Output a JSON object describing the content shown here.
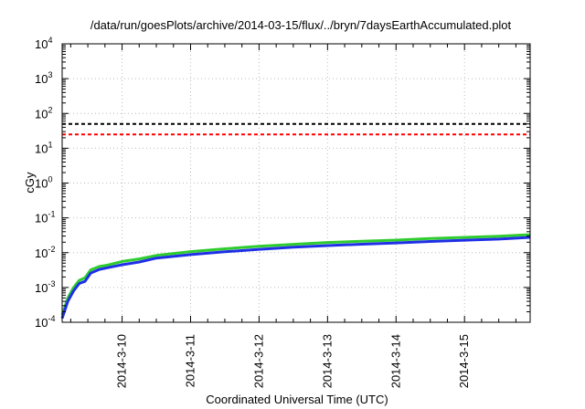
{
  "chart_data": {
    "type": "line",
    "title": "/data/run/goesPlots/archive/2014-03-15/flux/../bryn/7daysEarthAccumulated.plot",
    "xlabel": "Coordinated Universal Time (UTC)",
    "ylabel": "cGy",
    "y_scale": "log",
    "ylim": [
      0.0001,
      10000
    ],
    "y_ticks": [
      {
        "value": 0.0001,
        "base": "10",
        "exp": "-4"
      },
      {
        "value": 0.001,
        "base": "10",
        "exp": "-3"
      },
      {
        "value": 0.01,
        "base": "10",
        "exp": "-2"
      },
      {
        "value": 0.1,
        "base": "10",
        "exp": "-1"
      },
      {
        "value": 1,
        "base": "10",
        "exp": "0"
      },
      {
        "value": 10,
        "base": "10",
        "exp": "1"
      },
      {
        "value": 100,
        "base": "10",
        "exp": "2"
      },
      {
        "value": 1000,
        "base": "10",
        "exp": "3"
      },
      {
        "value": 10000,
        "base": "10",
        "exp": "4"
      }
    ],
    "xlim": [
      "2014-03-09T03:00",
      "2014-03-15T23:00"
    ],
    "x_ticks": [
      {
        "value": "2014-03-10T00:00",
        "label": "2014-3-10"
      },
      {
        "value": "2014-03-11T00:00",
        "label": "2014-3-11"
      },
      {
        "value": "2014-03-12T00:00",
        "label": "2014-3-12"
      },
      {
        "value": "2014-03-13T00:00",
        "label": "2014-3-13"
      },
      {
        "value": "2014-03-14T00:00",
        "label": "2014-3-14"
      },
      {
        "value": "2014-03-15T00:00",
        "label": "2014-3-15"
      }
    ],
    "grid": true,
    "legend": "none",
    "reference_lines": [
      {
        "y": 50,
        "color": "#000000",
        "style": "dashed"
      },
      {
        "y": 25,
        "color": "#ff0000",
        "style": "dashed"
      }
    ],
    "series": [
      {
        "color": "#2ecc2e",
        "x": [
          "2014-03-09T03:00",
          "2014-03-09T05:00",
          "2014-03-09T07:00",
          "2014-03-09T09:00",
          "2014-03-09T11:00",
          "2014-03-09T13:00",
          "2014-03-09T16:00",
          "2014-03-09T19:00",
          "2014-03-10T00:00",
          "2014-03-10T06:00",
          "2014-03-10T12:00",
          "2014-03-11T00:00",
          "2014-03-11T12:00",
          "2014-03-12T00:00",
          "2014-03-12T12:00",
          "2014-03-13T00:00",
          "2014-03-13T12:00",
          "2014-03-14T00:00",
          "2014-03-14T12:00",
          "2014-03-15T00:00",
          "2014-03-15T12:00",
          "2014-03-15T23:00"
        ],
        "values": [
          0.00016,
          0.0005,
          0.001,
          0.0016,
          0.0019,
          0.0032,
          0.004,
          0.0044,
          0.0056,
          0.0066,
          0.0083,
          0.0107,
          0.0129,
          0.0153,
          0.0174,
          0.0196,
          0.0213,
          0.023,
          0.0255,
          0.0275,
          0.0295,
          0.033
        ]
      },
      {
        "color": "#1f2fe6",
        "x": [
          "2014-03-09T03:00",
          "2014-03-09T05:00",
          "2014-03-09T07:00",
          "2014-03-09T09:00",
          "2014-03-09T11:00",
          "2014-03-09T13:00",
          "2014-03-09T16:00",
          "2014-03-09T19:00",
          "2014-03-10T00:00",
          "2014-03-10T06:00",
          "2014-03-10T12:00",
          "2014-03-11T00:00",
          "2014-03-11T12:00",
          "2014-03-12T00:00",
          "2014-03-12T12:00",
          "2014-03-13T00:00",
          "2014-03-13T12:00",
          "2014-03-14T00:00",
          "2014-03-14T12:00",
          "2014-03-15T00:00",
          "2014-03-15T12:00",
          "2014-03-15T23:00"
        ],
        "values": [
          0.00013,
          0.0004,
          0.0008,
          0.0013,
          0.0015,
          0.0026,
          0.0033,
          0.0037,
          0.0045,
          0.0054,
          0.007,
          0.0088,
          0.0106,
          0.0125,
          0.0143,
          0.016,
          0.0175,
          0.019,
          0.021,
          0.0228,
          0.0245,
          0.0275
        ]
      }
    ]
  }
}
